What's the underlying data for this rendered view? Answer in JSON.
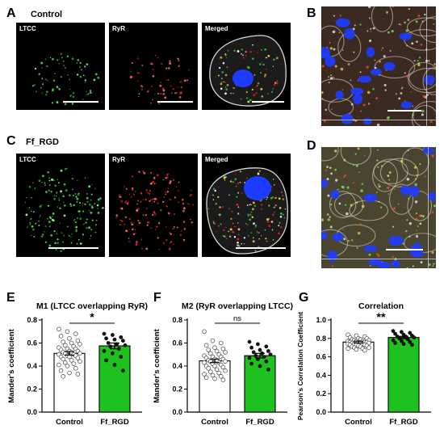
{
  "panels": {
    "A": {
      "letter": "A",
      "condition": "Control",
      "images": [
        "LTCC",
        "RyR",
        "Merged"
      ]
    },
    "B": {
      "letter": "B"
    },
    "C": {
      "letter": "C",
      "condition": "Ff_RGD",
      "images": [
        "LTCC",
        "RyR",
        "Merged"
      ]
    },
    "D": {
      "letter": "D"
    },
    "E": {
      "letter": "E"
    },
    "F": {
      "letter": "F"
    },
    "G": {
      "letter": "G"
    }
  },
  "colors": {
    "ltcc": "#2ecc40",
    "ryr": "#e02020",
    "control_bar": "#ffffff",
    "ffrgd_bar": "#1ec21e",
    "nucleus": "#1e3cff"
  },
  "chart_data": [
    {
      "id": "E",
      "type": "bar",
      "title": "M1 (LTCC overlapping RyR)",
      "ylabel": "Mander's coefficient",
      "categories": [
        "Control",
        "Ff_RGD"
      ],
      "values": [
        0.51,
        0.575
      ],
      "sem": [
        0.015,
        0.025
      ],
      "ylim": [
        0,
        0.8
      ],
      "yticks": [
        "0.0",
        "0.2",
        "0.4",
        "0.6",
        "0.8"
      ],
      "significance": "*",
      "points": [
        [
          0.72,
          0.7,
          0.68,
          0.66,
          0.64,
          0.62,
          0.61,
          0.6,
          0.59,
          0.58,
          0.57,
          0.56,
          0.55,
          0.55,
          0.54,
          0.53,
          0.53,
          0.52,
          0.52,
          0.51,
          0.51,
          0.5,
          0.5,
          0.49,
          0.49,
          0.48,
          0.48,
          0.47,
          0.46,
          0.45,
          0.44,
          0.43,
          0.42,
          0.41,
          0.4,
          0.38,
          0.36,
          0.34,
          0.33,
          0.31
        ],
        [
          0.68,
          0.67,
          0.65,
          0.64,
          0.63,
          0.62,
          0.6,
          0.59,
          0.58,
          0.57,
          0.55,
          0.53,
          0.51,
          0.48,
          0.45,
          0.41,
          0.36
        ]
      ]
    },
    {
      "id": "F",
      "type": "bar",
      "title": "M2 (RyR overlapping LTCC)",
      "ylabel": "Mander's coefficient",
      "categories": [
        "Control",
        "Ff_RGD"
      ],
      "values": [
        0.445,
        0.49
      ],
      "sem": [
        0.015,
        0.02
      ],
      "ylim": [
        0,
        0.8
      ],
      "yticks": [
        "0.0",
        "0.2",
        "0.4",
        "0.6",
        "0.8"
      ],
      "significance": "ns",
      "points": [
        [
          0.7,
          0.62,
          0.6,
          0.58,
          0.56,
          0.55,
          0.54,
          0.53,
          0.52,
          0.51,
          0.5,
          0.49,
          0.48,
          0.48,
          0.47,
          0.46,
          0.46,
          0.45,
          0.45,
          0.44,
          0.44,
          0.43,
          0.43,
          0.42,
          0.41,
          0.4,
          0.4,
          0.39,
          0.38,
          0.37,
          0.36,
          0.35,
          0.34,
          0.33,
          0.32,
          0.31,
          0.3,
          0.29,
          0.28
        ],
        [
          0.61,
          0.59,
          0.57,
          0.56,
          0.54,
          0.53,
          0.52,
          0.51,
          0.5,
          0.49,
          0.48,
          0.47,
          0.46,
          0.44,
          0.42,
          0.4,
          0.37
        ]
      ]
    },
    {
      "id": "G",
      "type": "bar",
      "title": "Correlation",
      "ylabel": "Pearson's Correlation Coefficient",
      "categories": [
        "Control",
        "Ff_RGD"
      ],
      "values": [
        0.76,
        0.81
      ],
      "sem": [
        0.01,
        0.012
      ],
      "ylim": [
        0,
        1.0
      ],
      "yticks": [
        "0.0",
        "0.2",
        "0.4",
        "0.6",
        "0.8",
        "1.0"
      ],
      "significance": "**",
      "points": [
        [
          0.84,
          0.83,
          0.82,
          0.81,
          0.8,
          0.8,
          0.79,
          0.79,
          0.78,
          0.78,
          0.77,
          0.77,
          0.77,
          0.76,
          0.76,
          0.76,
          0.76,
          0.75,
          0.75,
          0.75,
          0.74,
          0.74,
          0.74,
          0.73,
          0.73,
          0.73,
          0.72,
          0.72,
          0.71,
          0.71,
          0.7,
          0.7,
          0.69,
          0.69,
          0.68,
          0.67
        ],
        [
          0.88,
          0.87,
          0.86,
          0.85,
          0.84,
          0.83,
          0.82,
          0.82,
          0.81,
          0.8,
          0.79,
          0.78,
          0.77,
          0.76,
          0.75,
          0.74,
          0.73
        ]
      ]
    }
  ]
}
